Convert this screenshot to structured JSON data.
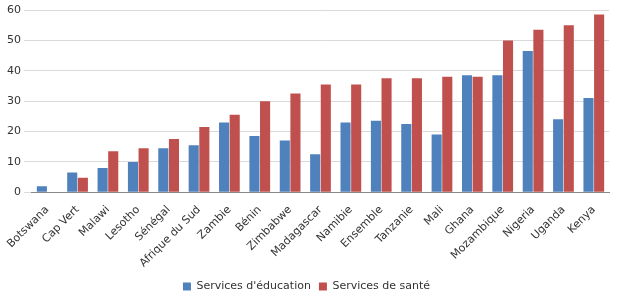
{
  "chart_data": {
    "type": "bar",
    "categories": [
      "Botswana",
      "Cap Vert",
      "Malawi",
      "Lesotho",
      "Sénégal",
      "Afrique du Sud",
      "Zambie",
      "Bénin",
      "Zimbabwe",
      "Madagascar",
      "Namibie",
      "Ensemble",
      "Tanzanie",
      "Mali",
      "Ghana",
      "Mozambique",
      "Nigeria",
      "Uganda",
      "Kenya"
    ],
    "series": [
      {
        "name": "Services d'éducation",
        "color": "#4f81bd",
        "values": [
          2,
          6.5,
          8,
          10,
          14.5,
          15.5,
          23,
          18.5,
          17,
          12.5,
          23,
          23.5,
          22.5,
          19,
          38.5,
          38.5,
          46.5,
          24,
          31
        ]
      },
      {
        "name": "Services de santé",
        "color": "#c0504d",
        "values": [
          0,
          4.8,
          13.5,
          14.5,
          17.5,
          21.5,
          25.5,
          30,
          32.5,
          35.5,
          35.5,
          37.5,
          37.5,
          38,
          38,
          50,
          53.5,
          55,
          58.5
        ]
      }
    ],
    "ylim": [
      0,
      60
    ],
    "yticks": [
      0,
      10,
      20,
      30,
      40,
      50,
      60
    ],
    "grid": true,
    "legend": "bottom"
  }
}
